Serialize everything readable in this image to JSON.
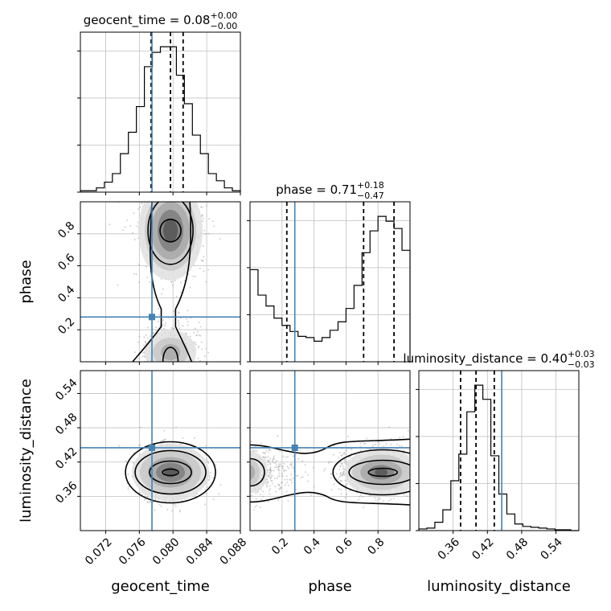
{
  "params": [
    "geocent_time",
    "phase",
    "luminosity_distance"
  ],
  "titles": [
    {
      "name": "geocent_time",
      "value": "0.08",
      "up": "+0.00",
      "down": "−0.00"
    },
    {
      "name": "phase",
      "value": "0.71",
      "up": "+0.18",
      "down": "−0.47"
    },
    {
      "name": "luminosity_distance",
      "value": "0.40",
      "up": "+0.03",
      "down": "−0.03"
    }
  ],
  "colors": {
    "truth": "#4682b4",
    "hist": "#000000",
    "grid": "#c0c0c0",
    "scatter": "#9a9a9a"
  },
  "chart_data": {
    "type": "corner",
    "truths": {
      "geocent_time": 0.0775,
      "phase": 0.28,
      "luminosity_distance": 0.445
    },
    "axes": {
      "geocent_time": {
        "range": [
          0.069,
          0.088
        ],
        "ticks": [
          0.072,
          0.076,
          0.08,
          0.084,
          0.088
        ],
        "ticklabels": [
          "0.072",
          "0.076",
          "0.080",
          "0.084",
          "0.088"
        ]
      },
      "phase": {
        "range": [
          0.0,
          1.0
        ],
        "ticks": [
          0.2,
          0.4,
          0.6,
          0.8
        ],
        "ticklabels": [
          "0.2",
          "0.4",
          "0.6",
          "0.8"
        ]
      },
      "luminosity_distance": {
        "range": [
          0.3,
          0.58
        ],
        "ticks": [
          0.36,
          0.42,
          0.48,
          0.54
        ],
        "ticklabels": [
          "0.36",
          "0.42",
          "0.48",
          "0.54"
        ]
      }
    },
    "histograms": [
      {
        "param": "geocent_time",
        "quantiles": [
          0.0774,
          0.0797,
          0.0812
        ],
        "values": [
          1,
          1,
          3,
          7,
          13,
          27,
          42,
          60,
          88,
          98,
          102,
          102,
          82,
          62,
          40,
          27,
          13,
          8,
          3,
          1
        ]
      },
      {
        "param": "phase",
        "quantiles": [
          0.23,
          0.71,
          0.9
        ],
        "values": [
          76,
          55,
          46,
          36,
          30,
          25,
          21,
          20,
          17,
          20,
          26,
          33,
          44,
          63,
          90,
          108,
          120,
          116,
          110,
          92
        ]
      },
      {
        "param": "luminosity_distance",
        "quantiles": [
          0.373,
          0.4,
          0.432
        ],
        "values": [
          2,
          3,
          10,
          25,
          60,
          92,
          143,
          175,
          158,
          90,
          44,
          20,
          8,
          5,
          4,
          3,
          2,
          1,
          1,
          0
        ]
      }
    ],
    "ylabels": [
      "phase",
      "luminosity_distance"
    ],
    "xlabels": [
      "geocent_time",
      "phase",
      "luminosity_distance"
    ]
  }
}
